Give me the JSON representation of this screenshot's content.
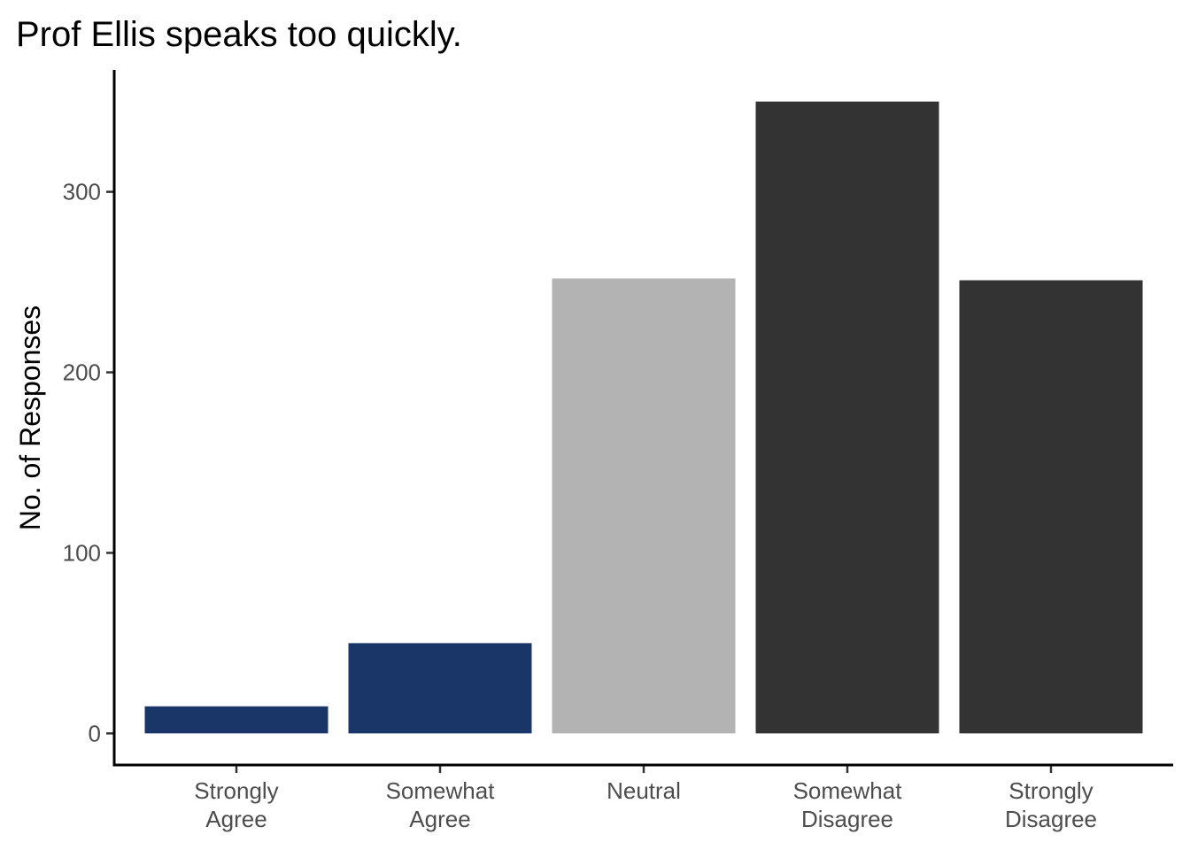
{
  "chart_data": {
    "type": "bar",
    "title": "Prof Ellis speaks too quickly.",
    "xlabel": "",
    "ylabel": "No. of Responses",
    "categories": [
      [
        "Strongly",
        "Agree"
      ],
      [
        "Somewhat",
        "Agree"
      ],
      [
        "Neutral"
      ],
      [
        "Somewhat",
        "Disagree"
      ],
      [
        "Strongly",
        "Disagree"
      ]
    ],
    "values": [
      15,
      50,
      252,
      350,
      251
    ],
    "colors": [
      "#1a3668",
      "#1a3668",
      "#b3b3b3",
      "#333333",
      "#333333"
    ],
    "yticks": [
      0,
      100,
      200,
      300
    ],
    "ylim": [
      -17.5,
      367.5
    ],
    "grid": false,
    "legend": "none"
  }
}
